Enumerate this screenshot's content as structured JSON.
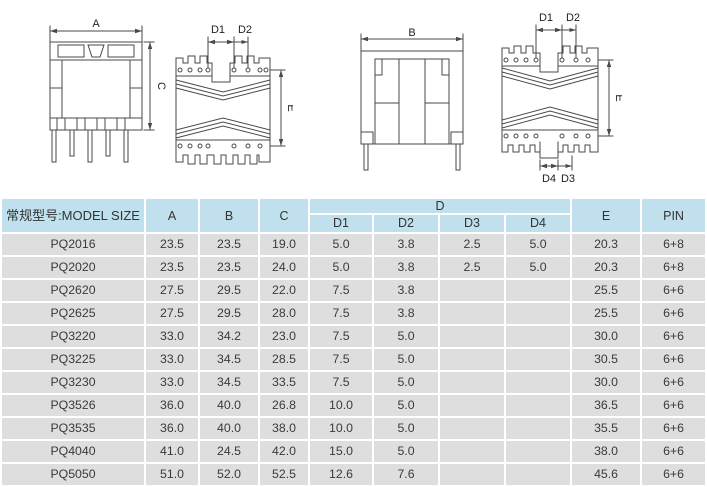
{
  "colors": {
    "page_bg": "#ffffff",
    "header_bg": "#bfe0ec",
    "row_bg": "#dedede",
    "text": "#3a3a3a",
    "line": "#4a4a4a"
  },
  "drawings": {
    "front_view_a": {
      "dim_top": "A",
      "dim_right": "C"
    },
    "side_view_left": {
      "dim_top_1": "D1",
      "dim_top_2": "D2",
      "dim_right": "E"
    },
    "front_view_b": {
      "dim_top": "B"
    },
    "side_view_right": {
      "dim_top_1": "D1",
      "dim_top_2": "D2",
      "dim_right": "E",
      "dim_bottom_1": "D4",
      "dim_bottom_2": "D3"
    }
  },
  "table": {
    "header": {
      "model_col": "常规型号:MODEL SIZE",
      "col_a": "A",
      "col_b": "B",
      "col_c": "C",
      "d_group": "D",
      "d_cols": [
        "D1",
        "D2",
        "D3",
        "D4"
      ],
      "col_e": "E",
      "col_pin": "PIN"
    },
    "rows": [
      {
        "model": "PQ2016",
        "a": "23.5",
        "b": "23.5",
        "c": "19.0",
        "d1": "5.0",
        "d2": "3.8",
        "d3": "2.5",
        "d4": "5.0",
        "e": "20.3",
        "pin": "6+8"
      },
      {
        "model": "PQ2020",
        "a": "23.5",
        "b": "23.5",
        "c": "24.0",
        "d1": "5.0",
        "d2": "3.8",
        "d3": "2.5",
        "d4": "5.0",
        "e": "20.3",
        "pin": "6+8"
      },
      {
        "model": "PQ2620",
        "a": "27.5",
        "b": "29.5",
        "c": "22.0",
        "d1": "7.5",
        "d2": "3.8",
        "d3": "",
        "d4": "",
        "e": "25.5",
        "pin": "6+6"
      },
      {
        "model": "PQ2625",
        "a": "27.5",
        "b": "29.5",
        "c": "28.0",
        "d1": "7.5",
        "d2": "3.8",
        "d3": "",
        "d4": "",
        "e": "25.5",
        "pin": "6+6"
      },
      {
        "model": "PQ3220",
        "a": "33.0",
        "b": "34.2",
        "c": "23.0",
        "d1": "7.5",
        "d2": "5.0",
        "d3": "",
        "d4": "",
        "e": "30.0",
        "pin": "6+6"
      },
      {
        "model": "PQ3225",
        "a": "33.0",
        "b": "34.5",
        "c": "28.5",
        "d1": "7.5",
        "d2": "5.0",
        "d3": "",
        "d4": "",
        "e": "30.5",
        "pin": "6+6"
      },
      {
        "model": "PQ3230",
        "a": "33.0",
        "b": "34.5",
        "c": "33.5",
        "d1": "7.5",
        "d2": "5.0",
        "d3": "",
        "d4": "",
        "e": "30.0",
        "pin": "6+6"
      },
      {
        "model": "PQ3526",
        "a": "36.0",
        "b": "40.0",
        "c": "26.8",
        "d1": "10.0",
        "d2": "5.0",
        "d3": "",
        "d4": "",
        "e": "36.5",
        "pin": "6+6"
      },
      {
        "model": "PQ3535",
        "a": "36.0",
        "b": "40.0",
        "c": "38.0",
        "d1": "10.0",
        "d2": "5.0",
        "d3": "",
        "d4": "",
        "e": "35.5",
        "pin": "6+6"
      },
      {
        "model": "PQ4040",
        "a": "41.0",
        "b": "24.5",
        "c": "42.0",
        "d1": "15.0",
        "d2": "5.0",
        "d3": "",
        "d4": "",
        "e": "38.0",
        "pin": "6+6"
      },
      {
        "model": "PQ5050",
        "a": "51.0",
        "b": "52.0",
        "c": "52.5",
        "d1": "12.6",
        "d2": "7.6",
        "d3": "",
        "d4": "",
        "e": "45.6",
        "pin": "6+6"
      }
    ]
  }
}
